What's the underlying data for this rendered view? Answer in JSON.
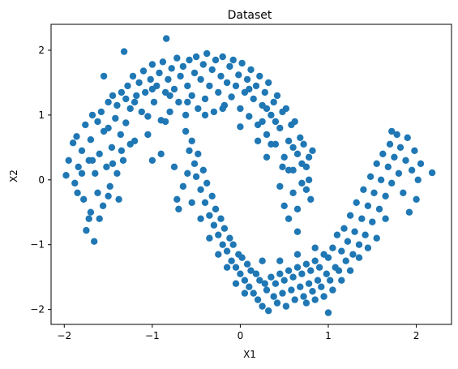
{
  "chart_data": {
    "type": "scatter",
    "title": "Dataset",
    "xlabel": "X1",
    "ylabel": "X2",
    "xlim": [
      -2.15,
      2.4
    ],
    "ylim": [
      -2.23,
      2.4
    ],
    "xticks": [
      -2,
      -1,
      0,
      1,
      2
    ],
    "xtick_labels": [
      "−2",
      "−1",
      "0",
      "1",
      "2"
    ],
    "yticks": [
      -2,
      -1,
      0,
      1,
      2
    ],
    "ytick_labels": [
      "−2",
      "−1",
      "0",
      "1",
      "2"
    ],
    "grid": false,
    "legend": "none",
    "series": [
      {
        "color": "#1f77b4",
        "description_shape": "two interleaving half-moons",
        "points": [
          [
            -1.98,
            0.07
          ],
          [
            -1.9,
            0.57
          ],
          [
            -1.88,
            -0.05
          ],
          [
            -1.86,
            0.67
          ],
          [
            -1.84,
            0.2
          ],
          [
            -1.8,
            0.45
          ],
          [
            -1.78,
            -0.3
          ],
          [
            -1.76,
            0.85
          ],
          [
            -1.75,
            -0.78
          ],
          [
            -1.72,
            0.3
          ],
          [
            -1.7,
            -0.5
          ],
          [
            -1.7,
            0.62
          ],
          [
            -1.68,
            1.0
          ],
          [
            -1.66,
            -0.95
          ],
          [
            -1.65,
            0.1
          ],
          [
            -1.62,
            -0.2
          ],
          [
            -1.6,
            0.4
          ],
          [
            -1.58,
            1.05
          ],
          [
            -1.56,
            -0.4
          ],
          [
            -1.55,
            0.75
          ],
          [
            -1.52,
            0.2
          ],
          [
            -1.5,
            1.2
          ],
          [
            -1.48,
            -0.1
          ],
          [
            -1.46,
            0.5
          ],
          [
            -1.45,
            1.3
          ],
          [
            -1.42,
            0.95
          ],
          [
            -1.4,
            1.15
          ],
          [
            -1.4,
            0.1
          ],
          [
            -1.38,
            -0.3
          ],
          [
            -1.36,
            0.7
          ],
          [
            -1.35,
            1.35
          ],
          [
            -1.33,
            0.3
          ],
          [
            -1.3,
            1.25
          ],
          [
            -1.3,
            0.88
          ],
          [
            -1.28,
            1.45
          ],
          [
            -1.25,
            1.1
          ],
          [
            -1.22,
            1.6
          ],
          [
            -1.2,
            0.6
          ],
          [
            -1.18,
            1.3
          ],
          [
            -1.15,
            1.5
          ],
          [
            -1.12,
            1.05
          ],
          [
            -1.1,
            1.68
          ],
          [
            -1.08,
            1.35
          ],
          [
            -1.05,
            0.98
          ],
          [
            -1.02,
            1.55
          ],
          [
            -1.0,
            1.78
          ],
          [
            -0.98,
            1.2
          ],
          [
            -0.95,
            1.45
          ],
          [
            -0.92,
            1.65
          ],
          [
            -0.9,
            0.92
          ],
          [
            -0.88,
            1.82
          ],
          [
            -0.85,
            1.35
          ],
          [
            -0.84,
            2.18
          ],
          [
            -0.82,
            1.55
          ],
          [
            -0.8,
            1.05
          ],
          [
            -0.78,
            1.72
          ],
          [
            -0.75,
            1.4
          ],
          [
            -0.72,
            1.88
          ],
          [
            -0.7,
            1.2
          ],
          [
            -0.68,
            1.6
          ],
          [
            -0.65,
            1.75
          ],
          [
            -0.62,
            1.0
          ],
          [
            -0.6,
            1.45
          ],
          [
            -0.58,
            1.85
          ],
          [
            -0.55,
            1.3
          ],
          [
            -0.52,
            1.65
          ],
          [
            -0.5,
            1.9
          ],
          [
            -0.48,
            1.1
          ],
          [
            -0.45,
            1.55
          ],
          [
            -0.42,
            1.78
          ],
          [
            -0.4,
            1.25
          ],
          [
            -0.38,
            1.95
          ],
          [
            -0.35,
            1.45
          ],
          [
            -0.32,
            1.7
          ],
          [
            -0.3,
            1.05
          ],
          [
            -0.28,
            1.85
          ],
          [
            -0.25,
            1.35
          ],
          [
            -0.22,
            1.6
          ],
          [
            -0.2,
            1.9
          ],
          [
            -0.18,
            1.15
          ],
          [
            -0.15,
            1.5
          ],
          [
            -0.12,
            1.75
          ],
          [
            -0.1,
            1.28
          ],
          [
            -0.08,
            1.85
          ],
          [
            -0.05,
            1.45
          ],
          [
            -0.02,
            1.62
          ],
          [
            0.0,
            1.1
          ],
          [
            0.02,
            1.8
          ],
          [
            0.05,
            1.35
          ],
          [
            0.08,
            1.55
          ],
          [
            0.1,
            0.98
          ],
          [
            0.12,
            1.7
          ],
          [
            0.15,
            1.25
          ],
          [
            0.18,
            1.45
          ],
          [
            0.2,
            0.85
          ],
          [
            0.22,
            1.6
          ],
          [
            0.25,
            1.15
          ],
          [
            0.28,
            1.35
          ],
          [
            0.3,
            0.7
          ],
          [
            0.32,
            1.5
          ],
          [
            0.35,
            1.0
          ],
          [
            0.38,
            1.2
          ],
          [
            0.4,
            0.55
          ],
          [
            0.42,
            1.3
          ],
          [
            0.45,
            0.8
          ],
          [
            0.48,
            1.05
          ],
          [
            0.5,
            0.35
          ],
          [
            0.52,
            1.1
          ],
          [
            0.55,
            0.6
          ],
          [
            0.58,
            0.85
          ],
          [
            0.6,
            0.15
          ],
          [
            0.62,
            0.9
          ],
          [
            0.65,
            0.4
          ],
          [
            0.68,
            0.65
          ],
          [
            0.7,
            -0.05
          ],
          [
            0.72,
            0.55
          ],
          [
            0.75,
            0.2
          ],
          [
            0.78,
            0.0
          ],
          [
            0.8,
            -0.3
          ],
          [
            0.82,
            0.45
          ],
          [
            0.45,
            -0.1
          ],
          [
            0.5,
            -0.4
          ],
          [
            0.55,
            -0.6
          ],
          [
            0.6,
            -0.2
          ],
          [
            0.65,
            -0.8
          ],
          [
            0.48,
            0.2
          ],
          [
            0.35,
            0.55
          ],
          [
            0.3,
            0.35
          ],
          [
            0.25,
            0.9
          ],
          [
            0.2,
            0.6
          ],
          [
            -0.62,
            0.75
          ],
          [
            -0.58,
            0.45
          ],
          [
            -0.55,
            0.6
          ],
          [
            -0.52,
            0.25
          ],
          [
            -0.5,
            0.05
          ],
          [
            -0.48,
            0.4
          ],
          [
            -0.45,
            -0.15
          ],
          [
            -0.42,
            0.15
          ],
          [
            -0.4,
            -0.35
          ],
          [
            -0.38,
            -0.05
          ],
          [
            -0.35,
            -0.55
          ],
          [
            -0.32,
            -0.25
          ],
          [
            -0.3,
            -0.7
          ],
          [
            -0.28,
            -0.45
          ],
          [
            -0.25,
            -0.85
          ],
          [
            -0.22,
            -0.6
          ],
          [
            -0.2,
            -1.0
          ],
          [
            -0.18,
            -0.75
          ],
          [
            -0.15,
            -1.1
          ],
          [
            -0.12,
            -0.9
          ],
          [
            -0.1,
            -1.25
          ],
          [
            -0.08,
            -1.0
          ],
          [
            -0.05,
            -1.35
          ],
          [
            -0.02,
            -1.15
          ],
          [
            0.0,
            -1.45
          ],
          [
            0.02,
            -1.2
          ],
          [
            0.05,
            -1.55
          ],
          [
            0.08,
            -1.3
          ],
          [
            0.1,
            -1.65
          ],
          [
            0.12,
            -1.4
          ],
          [
            0.15,
            -1.75
          ],
          [
            0.18,
            -1.45
          ],
          [
            0.2,
            -1.85
          ],
          [
            0.22,
            -1.55
          ],
          [
            0.25,
            -1.95
          ],
          [
            0.28,
            -1.6
          ],
          [
            0.3,
            -1.7
          ],
          [
            0.32,
            -2.02
          ],
          [
            0.35,
            -1.5
          ],
          [
            0.38,
            -1.8
          ],
          [
            0.4,
            -1.6
          ],
          [
            0.42,
            -1.9
          ],
          [
            0.45,
            -1.45
          ],
          [
            0.48,
            -1.75
          ],
          [
            0.5,
            -1.55
          ],
          [
            0.52,
            -1.95
          ],
          [
            0.55,
            -1.4
          ],
          [
            0.58,
            -1.7
          ],
          [
            0.6,
            -1.5
          ],
          [
            0.62,
            -1.85
          ],
          [
            0.65,
            -1.35
          ],
          [
            0.68,
            -1.65
          ],
          [
            0.7,
            -1.45
          ],
          [
            0.72,
            -1.8
          ],
          [
            0.75,
            -1.3
          ],
          [
            0.78,
            -1.6
          ],
          [
            0.8,
            -1.4
          ],
          [
            0.82,
            -1.72
          ],
          [
            0.85,
            -1.25
          ],
          [
            0.88,
            -1.55
          ],
          [
            0.9,
            -1.35
          ],
          [
            0.92,
            -1.65
          ],
          [
            0.95,
            -1.15
          ],
          [
            0.98,
            -1.45
          ],
          [
            1.0,
            -1.2
          ],
          [
            1.0,
            -2.05
          ],
          [
            1.02,
            -1.55
          ],
          [
            1.05,
            -1.05
          ],
          [
            1.08,
            -1.35
          ],
          [
            1.1,
            -0.85
          ],
          [
            1.12,
            -1.4
          ],
          [
            1.15,
            -1.1
          ],
          [
            1.18,
            -0.75
          ],
          [
            1.2,
            -1.25
          ],
          [
            1.22,
            -0.95
          ],
          [
            1.25,
            -0.55
          ],
          [
            1.28,
            -1.15
          ],
          [
            1.3,
            -0.8
          ],
          [
            1.32,
            -0.35
          ],
          [
            1.35,
            -1.0
          ],
          [
            1.38,
            -0.6
          ],
          [
            1.4,
            -0.15
          ],
          [
            1.42,
            -0.85
          ],
          [
            1.45,
            -0.4
          ],
          [
            1.48,
            0.05
          ],
          [
            1.5,
            -0.65
          ],
          [
            1.52,
            -0.2
          ],
          [
            1.55,
            0.25
          ],
          [
            1.58,
            -0.45
          ],
          [
            1.6,
            0.0
          ],
          [
            1.62,
            0.4
          ],
          [
            1.65,
            -0.25
          ],
          [
            1.68,
            0.2
          ],
          [
            1.7,
            0.55
          ],
          [
            1.72,
            -0.05
          ],
          [
            1.75,
            0.35
          ],
          [
            1.78,
            0.7
          ],
          [
            1.8,
            0.1
          ],
          [
            1.82,
            0.5
          ],
          [
            1.85,
            -0.2
          ],
          [
            1.88,
            0.3
          ],
          [
            1.9,
            0.65
          ],
          [
            1.92,
            -0.5
          ],
          [
            1.95,
            0.15
          ],
          [
            1.98,
            0.45
          ],
          [
            2.0,
            -0.3
          ],
          [
            2.02,
            0.0
          ],
          [
            2.05,
            0.25
          ],
          [
            2.18,
            0.11
          ],
          [
            1.72,
            0.75
          ],
          [
            1.65,
            -0.6
          ],
          [
            1.55,
            -0.9
          ],
          [
            1.45,
            -1.05
          ],
          [
            1.35,
            -1.2
          ],
          [
            1.25,
            -1.4
          ],
          [
            1.15,
            -1.55
          ],
          [
            1.05,
            -1.7
          ],
          [
            0.95,
            -1.8
          ],
          [
            0.85,
            -1.85
          ],
          [
            0.75,
            -1.9
          ],
          [
            -0.7,
            -0.45
          ],
          [
            -0.65,
            -0.1
          ],
          [
            -0.6,
            0.1
          ],
          [
            -0.75,
            0.2
          ],
          [
            -0.72,
            -0.3
          ],
          [
            -0.55,
            -0.35
          ],
          [
            -0.45,
            -0.6
          ],
          [
            -0.35,
            -0.9
          ],
          [
            -0.25,
            -1.15
          ],
          [
            -0.15,
            -1.35
          ],
          [
            -0.05,
            -1.6
          ],
          [
            0.05,
            -1.75
          ],
          [
            -0.9,
            0.4
          ],
          [
            -0.85,
            0.9
          ],
          [
            -1.0,
            0.3
          ],
          [
            -1.05,
            0.7
          ],
          [
            -1.25,
            0.55
          ],
          [
            -1.55,
            1.6
          ],
          [
            -1.32,
            1.98
          ],
          [
            -1.6,
            -0.6
          ],
          [
            -1.5,
            -0.25
          ],
          [
            -1.45,
            0.25
          ],
          [
            -1.35,
            0.45
          ],
          [
            -1.95,
            0.3
          ],
          [
            -1.85,
            -0.2
          ],
          [
            -1.8,
            0.1
          ],
          [
            -1.72,
            -0.6
          ],
          [
            -1.68,
            0.3
          ],
          [
            -1.62,
            0.9
          ],
          [
            -1.5,
            0.8
          ],
          [
            0.0,
            0.82
          ],
          [
            0.1,
            1.4
          ],
          [
            -0.2,
            1.1
          ],
          [
            -0.4,
            1.0
          ],
          [
            -0.6,
            1.2
          ],
          [
            -0.8,
            1.3
          ],
          [
            -1.0,
            1.4
          ],
          [
            -1.2,
            1.2
          ],
          [
            0.3,
            1.1
          ],
          [
            0.4,
            0.9
          ],
          [
            0.55,
            0.15
          ],
          [
            0.6,
            0.5
          ],
          [
            0.65,
            -0.45
          ],
          [
            0.7,
            0.25
          ],
          [
            0.75,
            -0.15
          ],
          [
            0.78,
            0.35
          ],
          [
            0.25,
            -1.25
          ],
          [
            0.45,
            -1.25
          ],
          [
            0.65,
            -1.15
          ],
          [
            0.85,
            -1.05
          ]
        ]
      }
    ]
  }
}
